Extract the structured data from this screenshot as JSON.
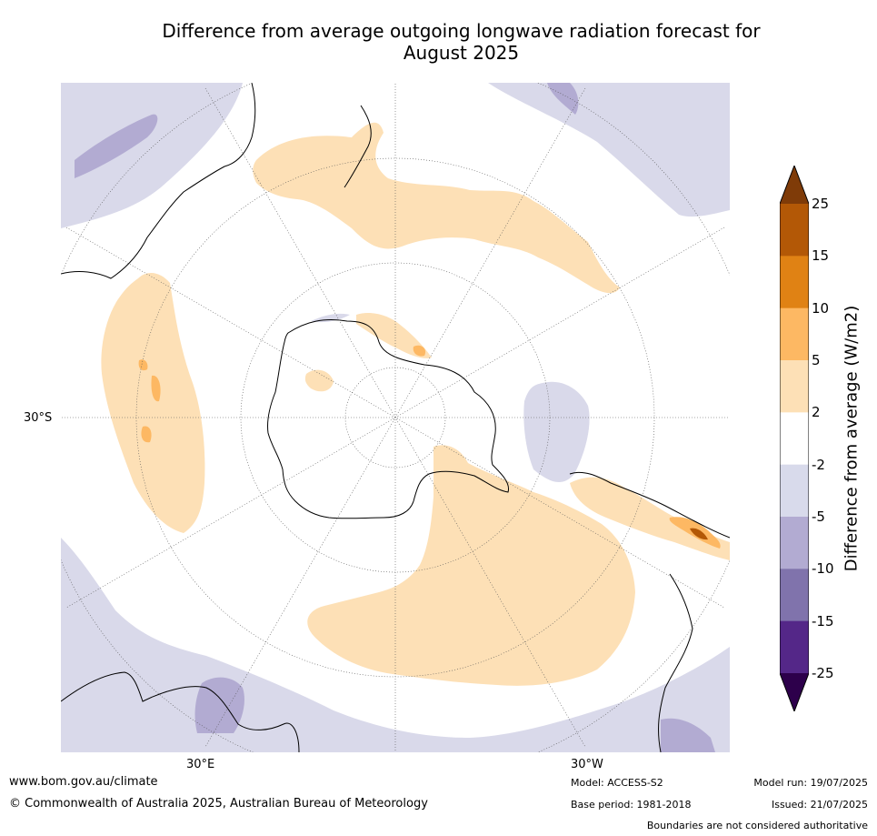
{
  "title_line1": "Difference from average outgoing longwave radiation forecast for",
  "title_line2": "August 2025",
  "map": {
    "projection": "south-polar-stereographic",
    "labels": {
      "left": "30°S",
      "bottom_left": "30°E",
      "bottom_right": "30°W"
    },
    "colors": {
      "ocean": "#ffffff",
      "neg_2_5": "#d9d9ea",
      "neg_5_10": "#b2abd2",
      "neg_10_15": "#8073ac",
      "pos_2_5": "#fde0b6",
      "pos_5_10": "#fdb863",
      "pos_10_15": "#e08214",
      "pos_15_25": "#b35806",
      "coast": "#000000",
      "border": "#808080",
      "graticule": "#555555"
    }
  },
  "colorbar": {
    "title": "Difference from average (W/m2)",
    "ticks": [
      "25",
      "15",
      "10",
      "5",
      "2",
      "-2",
      "-5",
      "-10",
      "-15",
      "-25"
    ],
    "bands": [
      "#b35806",
      "#e08214",
      "#fdb863",
      "#fde0b6",
      "#ffffff",
      "#d8daeb",
      "#b2abd2",
      "#8073ac",
      "#542788"
    ],
    "over_color": "#7f3b08",
    "under_color": "#2d004b"
  },
  "footer": {
    "url": "www.bom.gov.au/climate",
    "copyright": "© Commonwealth of Australia 2025, Australian Bureau of Meteorology",
    "model": "Model: ACCESS-S2",
    "base_period": "Base period: 1981-2018",
    "model_run": "Model run: 19/07/2025",
    "issued": "Issued: 21/07/2025",
    "boundaries": "Boundaries are not considered authoritative"
  }
}
